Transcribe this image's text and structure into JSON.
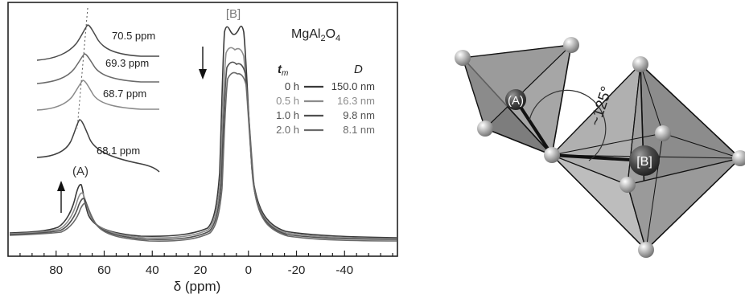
{
  "chart_data": {
    "type": "line",
    "xlabel": "δ (ppm)",
    "xlim": [
      100,
      -62
    ],
    "x_reversed": true,
    "ticks": [
      80,
      60,
      40,
      20,
      0,
      -20,
      -40
    ],
    "tick_labels": [
      "80",
      "60",
      "40",
      "20",
      "0",
      "-20",
      "-40"
    ],
    "compound": {
      "prefix": "MgAl",
      "sub1": "2",
      "mid": "O",
      "sub2": "4"
    },
    "peak_labels": {
      "A": "(A)",
      "B": "[B]"
    },
    "legend": {
      "tm_header": "t",
      "tm_sub": "m",
      "d_header": "D",
      "rows": [
        {
          "tm": "0 h",
          "d": "150.0 nm",
          "color": "#3a3a3a"
        },
        {
          "tm": "0.5 h",
          "d": "16.3 nm",
          "color": "#8c8c8c"
        },
        {
          "tm": "1.0 h",
          "d": "9.8 nm",
          "color": "#505050"
        },
        {
          "tm": "2.0 h",
          "d": "8.1 nm",
          "color": "#6a6a6a"
        }
      ]
    },
    "inset_peaks": [
      "70.5 ppm",
      "69.3 ppm",
      "68.7 ppm",
      "68.1 ppm"
    ]
  },
  "structure": {
    "label_A": "(A)",
    "label_B": "[B]",
    "angle": "~125°"
  }
}
